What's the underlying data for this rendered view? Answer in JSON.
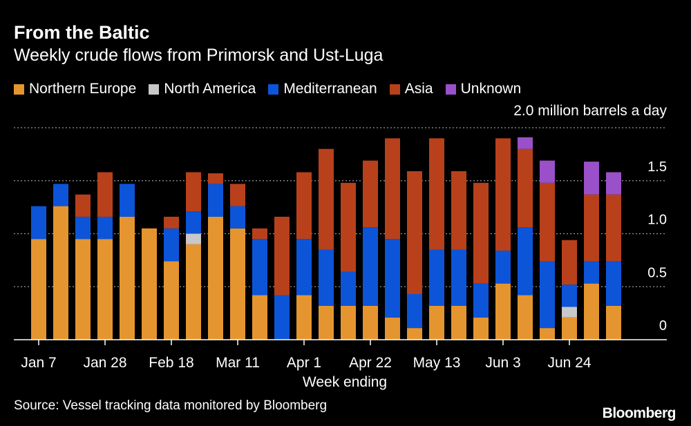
{
  "chart_data": {
    "type": "bar",
    "stacked": true,
    "title": "From the Baltic",
    "subtitle": "Weekly crude flows from Primorsk and Ust-Luga",
    "unit_label": "2.0 million barrels a day",
    "xlabel": "Week ending",
    "ylabel": "",
    "ylim": [
      0,
      2.0
    ],
    "yticks": [
      {
        "value": 0,
        "label": "0"
      },
      {
        "value": 0.5,
        "label": "0.5"
      },
      {
        "value": 1.0,
        "label": "1.0"
      },
      {
        "value": 1.5,
        "label": "1.5"
      },
      {
        "value": 2.0,
        "label": ""
      }
    ],
    "xticks": [
      {
        "index": 0,
        "label": "Jan 7"
      },
      {
        "index": 3,
        "label": "Jan 28"
      },
      {
        "index": 6,
        "label": "Feb 18"
      },
      {
        "index": 9,
        "label": "Mar 11"
      },
      {
        "index": 12,
        "label": "Apr 1"
      },
      {
        "index": 15,
        "label": "Apr 22"
      },
      {
        "index": 18,
        "label": "May 13"
      },
      {
        "index": 21,
        "label": "Jun 3"
      },
      {
        "index": 24,
        "label": "Jun 24"
      }
    ],
    "categories": [
      "Jan 7",
      "Jan 14",
      "Jan 21",
      "Jan 28",
      "Feb 4",
      "Feb 11",
      "Feb 18",
      "Feb 25",
      "Mar 4",
      "Mar 11",
      "Mar 18",
      "Mar 25",
      "Apr 1",
      "Apr 8",
      "Apr 15",
      "Apr 22",
      "Apr 29",
      "May 6",
      "May 13",
      "May 20",
      "May 27",
      "Jun 3",
      "Jun 10",
      "Jun 17",
      "Jun 24",
      "Jul 1",
      "Jul 8"
    ],
    "series": [
      {
        "name": "Northern Europe",
        "color": "#e5952f",
        "values": [
          0.95,
          1.26,
          0.95,
          0.95,
          1.16,
          1.05,
          0.74,
          0.9,
          1.16,
          1.05,
          0.42,
          0.0,
          0.42,
          0.32,
          0.32,
          0.32,
          0.21,
          0.11,
          0.32,
          0.32,
          0.21,
          0.53,
          0.42,
          0.11,
          0.21,
          0.53,
          0.32
        ]
      },
      {
        "name": "North America",
        "color": "#c8c8c8",
        "values": [
          0,
          0,
          0,
          0,
          0,
          0,
          0,
          0.1,
          0,
          0,
          0,
          0,
          0,
          0,
          0,
          0,
          0,
          0,
          0,
          0,
          0,
          0,
          0,
          0,
          0.1,
          0,
          0
        ]
      },
      {
        "name": "Mediterranean",
        "color": "#0d55d8",
        "values": [
          0.31,
          0.21,
          0.21,
          0.21,
          0.31,
          0,
          0.31,
          0.21,
          0.31,
          0.21,
          0.53,
          0.42,
          0.53,
          0.53,
          0.32,
          0.74,
          0.74,
          0.32,
          0.53,
          0.53,
          0.32,
          0.31,
          0.64,
          0.63,
          0.21,
          0.21,
          0.42
        ]
      },
      {
        "name": "Asia",
        "color": "#b8411b",
        "values": [
          0,
          0,
          0.21,
          0.42,
          0,
          0,
          0.11,
          0.37,
          0.1,
          0.21,
          0.1,
          0.74,
          0.63,
          0.95,
          0.84,
          0.63,
          0.95,
          1.16,
          1.05,
          0.74,
          0.95,
          1.06,
          0.74,
          0.74,
          0.42,
          0.63,
          0.63
        ]
      },
      {
        "name": "Unknown",
        "color": "#9a50c8",
        "values": [
          0,
          0,
          0,
          0,
          0,
          0,
          0,
          0,
          0,
          0,
          0,
          0,
          0,
          0,
          0,
          0,
          0,
          0,
          0,
          0,
          0,
          0,
          0.11,
          0.21,
          0,
          0.31,
          0.21
        ]
      }
    ],
    "grid": true,
    "legend_position": "top-left"
  },
  "source": "Source: Vessel tracking data monitored by Bloomberg",
  "brand": "Bloomberg"
}
